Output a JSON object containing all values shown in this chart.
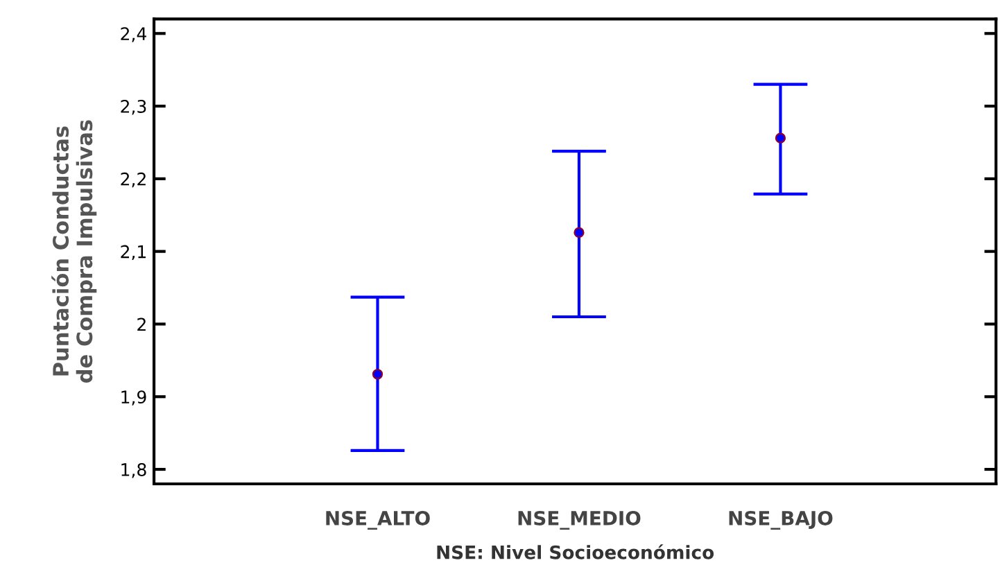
{
  "chart_data": {
    "type": "scatter",
    "ylabel": "Puntación Conductas\nde Compra Impulsivas",
    "xlabel": "NSE: Nivel Socioeconómico",
    "categories": [
      "NSE_ALTO",
      "NSE_MEDIO",
      "NSE_BAJO"
    ],
    "values": [
      1.931,
      2.126,
      2.256
    ],
    "errors": [
      [
        1.826,
        2.037
      ],
      [
        2.01,
        2.238
      ],
      [
        2.179,
        2.33
      ]
    ],
    "color": "#0000ff",
    "marker": "circle",
    "ylim": [
      1.78,
      2.42
    ],
    "yticks": [
      {
        "value": 1.8,
        "label": "1,8"
      },
      {
        "value": 1.9,
        "label": "1,9"
      },
      {
        "value": 2.0,
        "label": "2"
      },
      {
        "value": 2.1,
        "label": "2,1"
      },
      {
        "value": 2.2,
        "label": "2,2"
      },
      {
        "value": 2.3,
        "label": "2,3"
      },
      {
        "value": 2.4,
        "label": "2,4"
      }
    ],
    "grid": false,
    "legend": false
  }
}
